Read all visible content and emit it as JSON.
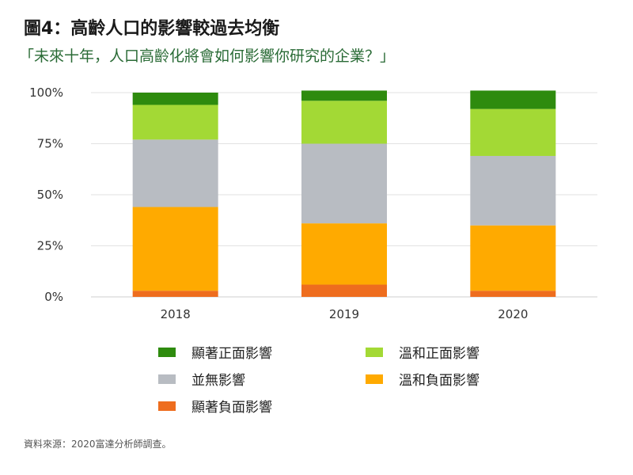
{
  "title": "圖4：高齡人口的影響較過去均衡",
  "subtitle": "「未來十年，人口高齡化將會如何影響你研究的企業？」",
  "source": "資料來源：2020富達分析師調查。",
  "colors": {
    "significant_positive": "#2e8b0e",
    "mild_positive": "#a3d935",
    "no_impact": "#b8bcc2",
    "mild_negative": "#ffaa00",
    "significant_negative": "#ee6d1e"
  },
  "chart_data": {
    "type": "bar",
    "stacked": true,
    "categories": [
      "2018",
      "2019",
      "2020"
    ],
    "y_tick_labels": [
      "0%",
      "25%",
      "50%",
      "75%",
      "100%"
    ],
    "ylim": [
      0,
      100
    ],
    "grid": true,
    "legend_position": "bottom",
    "series": [
      {
        "name": "顯著負面影響",
        "key": "significant_negative",
        "values": [
          3,
          6,
          3
        ]
      },
      {
        "name": "溫和負面影響",
        "key": "mild_negative",
        "values": [
          41,
          30,
          32
        ]
      },
      {
        "name": "並無影響",
        "key": "no_impact",
        "values": [
          33,
          39,
          34
        ]
      },
      {
        "name": "溫和正面影響",
        "key": "mild_positive",
        "values": [
          17,
          21,
          23
        ]
      },
      {
        "name": "顯著正面影響",
        "key": "significant_positive",
        "values": [
          6,
          5,
          9
        ]
      }
    ]
  },
  "legend": [
    {
      "label": "顯著正面影響",
      "key": "significant_positive"
    },
    {
      "label": "溫和正面影響",
      "key": "mild_positive"
    },
    {
      "label": "並無影響",
      "key": "no_impact"
    },
    {
      "label": "溫和負面影響",
      "key": "mild_negative"
    },
    {
      "label": "顯著負面影響",
      "key": "significant_negative"
    }
  ]
}
